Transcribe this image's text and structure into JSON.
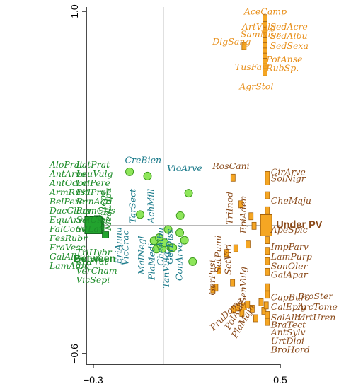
{
  "colors": {
    "between": "#1e8c2a",
    "between_marker": "#22a32e",
    "between_marker_stroke": "#0a5e14",
    "verge": "#1a7a8a",
    "verge_marker": "#8ee65a",
    "verge_marker_stroke": "#3c9a1c",
    "underpv": "#8a4a1a",
    "underpv_marker": "#f5a623",
    "underpv_marker_stroke": "#a06010",
    "upper_orange": "#e8901c",
    "axis": "#000000",
    "crosshair": "#b8b8b8"
  },
  "chart_data": {
    "type": "scatter",
    "title": "",
    "xlabel": "",
    "ylabel": "",
    "xlim": [
      -0.33,
      0.5
    ],
    "ylim": [
      -0.65,
      1.02
    ],
    "ticks": {
      "x": [
        {
          "v": -0.3,
          "label": "−0.3"
        },
        {
          "v": 0.5,
          "label": "0.5"
        }
      ],
      "y": [
        {
          "v": 1.0,
          "label": "1.0"
        },
        {
          "v": -0.6,
          "label": "−0.6"
        }
      ]
    },
    "crosshair": {
      "x": 0,
      "y": 0
    },
    "groups": [
      {
        "name": "Between",
        "x": -0.3,
        "y": 0.0
      },
      {
        "name": "Under PV",
        "x": 0.44,
        "y": 0.0
      }
    ],
    "points": [
      {
        "x": -0.285,
        "y": 0.015,
        "g": "between"
      },
      {
        "x": -0.282,
        "y": 0.03,
        "g": "between"
      },
      {
        "x": -0.278,
        "y": -0.005,
        "g": "between"
      },
      {
        "x": -0.275,
        "y": 0.02,
        "g": "between"
      },
      {
        "x": -0.27,
        "y": 0.005,
        "g": "between"
      },
      {
        "x": -0.268,
        "y": -0.01,
        "g": "between"
      },
      {
        "x": -0.248,
        "y": -0.045,
        "g": "between"
      },
      {
        "x": -0.145,
        "y": 0.25,
        "g": "verge"
      },
      {
        "x": -0.1,
        "y": 0.05,
        "g": "verge"
      },
      {
        "x": -0.068,
        "y": 0.23,
        "g": "verge"
      },
      {
        "x": -0.04,
        "y": -0.072,
        "g": "verge"
      },
      {
        "x": -0.03,
        "y": -0.112,
        "g": "verge"
      },
      {
        "x": -0.018,
        "y": -0.058,
        "g": "verge"
      },
      {
        "x": -0.012,
        "y": -0.09,
        "g": "verge"
      },
      {
        "x": -0.005,
        "y": -0.11,
        "g": "verge"
      },
      {
        "x": 0.005,
        "y": -0.082,
        "g": "verge"
      },
      {
        "x": 0.02,
        "y": -0.02,
        "g": "verge"
      },
      {
        "x": 0.032,
        "y": -0.105,
        "g": "verge"
      },
      {
        "x": 0.04,
        "y": -0.105,
        "g": "verge"
      },
      {
        "x": 0.07,
        "y": -0.035,
        "g": "verge"
      },
      {
        "x": 0.072,
        "y": 0.045,
        "g": "verge"
      },
      {
        "x": 0.09,
        "y": -0.07,
        "g": "verge"
      },
      {
        "x": 0.108,
        "y": 0.15,
        "g": "verge"
      },
      {
        "x": 0.125,
        "y": -0.17,
        "g": "verge"
      },
      {
        "x": 0.435,
        "y": 0.968,
        "g": "upper"
      },
      {
        "x": 0.435,
        "y": 0.935,
        "g": "upper"
      },
      {
        "x": 0.435,
        "y": 0.91,
        "g": "upper"
      },
      {
        "x": 0.435,
        "y": 0.884,
        "g": "upper"
      },
      {
        "x": 0.435,
        "y": 0.86,
        "g": "upper"
      },
      {
        "x": 0.435,
        "y": 0.836,
        "g": "upper"
      },
      {
        "x": 0.435,
        "y": 0.812,
        "g": "upper"
      },
      {
        "x": 0.435,
        "y": 0.788,
        "g": "upper"
      },
      {
        "x": 0.435,
        "y": 0.764,
        "g": "upper"
      },
      {
        "x": 0.435,
        "y": 0.738,
        "g": "upper"
      },
      {
        "x": 0.435,
        "y": 0.715,
        "g": "upper"
      },
      {
        "x": 0.345,
        "y": 0.838,
        "g": "upper"
      },
      {
        "x": 0.298,
        "y": 0.222,
        "g": "underpv"
      },
      {
        "x": 0.332,
        "y": 0.098,
        "g": "underpv"
      },
      {
        "x": 0.375,
        "y": 0.042,
        "g": "underpv"
      },
      {
        "x": 0.388,
        "y": -0.003,
        "g": "underpv"
      },
      {
        "x": 0.362,
        "y": -0.09,
        "g": "underpv"
      },
      {
        "x": 0.31,
        "y": -0.108,
        "g": "underpv"
      },
      {
        "x": 0.27,
        "y": -0.13,
        "g": "underpv"
      },
      {
        "x": 0.238,
        "y": -0.212,
        "g": "underpv"
      },
      {
        "x": 0.224,
        "y": -0.292,
        "g": "underpv"
      },
      {
        "x": 0.212,
        "y": -0.3,
        "g": "underpv"
      },
      {
        "x": 0.296,
        "y": -0.27,
        "g": "underpv"
      },
      {
        "x": 0.3,
        "y": -0.395,
        "g": "underpv"
      },
      {
        "x": 0.318,
        "y": -0.385,
        "g": "underpv"
      },
      {
        "x": 0.336,
        "y": -0.41,
        "g": "underpv"
      },
      {
        "x": 0.344,
        "y": -0.38,
        "g": "underpv"
      },
      {
        "x": 0.36,
        "y": -0.37,
        "g": "underpv"
      },
      {
        "x": 0.38,
        "y": -0.39,
        "g": "underpv"
      },
      {
        "x": 0.395,
        "y": -0.435,
        "g": "underpv"
      },
      {
        "x": 0.418,
        "y": -0.36,
        "g": "underpv"
      },
      {
        "x": 0.43,
        "y": -0.4,
        "g": "underpv"
      },
      {
        "x": 0.44,
        "y": -0.375,
        "g": "underpv"
      },
      {
        "x": 0.445,
        "y": 0.235,
        "g": "underpv"
      },
      {
        "x": 0.445,
        "y": 0.205,
        "g": "underpv"
      },
      {
        "x": 0.445,
        "y": 0.14,
        "g": "underpv"
      },
      {
        "x": 0.445,
        "y": 0.07,
        "g": "underpv"
      },
      {
        "x": 0.445,
        "y": -0.07,
        "g": "underpv"
      },
      {
        "x": 0.445,
        "y": -0.12,
        "g": "underpv"
      },
      {
        "x": 0.445,
        "y": -0.168,
        "g": "underpv"
      },
      {
        "x": 0.445,
        "y": -0.218,
        "g": "underpv"
      },
      {
        "x": 0.445,
        "y": -0.29,
        "g": "underpv"
      },
      {
        "x": 0.445,
        "y": -0.325,
        "g": "underpv"
      },
      {
        "x": 0.445,
        "y": -0.42,
        "g": "underpv"
      },
      {
        "x": 0.445,
        "y": -0.452,
        "g": "underpv"
      }
    ],
    "labels": [
      {
        "t": "AceCamp",
        "x": 0.345,
        "y": 0.985,
        "g": "upper",
        "r": 0
      },
      {
        "t": "ArtVulg",
        "x": 0.336,
        "y": 0.915,
        "g": "upper",
        "r": 0
      },
      {
        "t": "SedAcre",
        "x": 0.456,
        "y": 0.915,
        "g": "upper",
        "r": 0
      },
      {
        "t": "SamNigr",
        "x": 0.33,
        "y": 0.88,
        "g": "upper",
        "r": 0
      },
      {
        "t": "SedAlbu",
        "x": 0.456,
        "y": 0.872,
        "g": "upper",
        "r": 0
      },
      {
        "t": "SedSexa",
        "x": 0.456,
        "y": 0.825,
        "g": "upper",
        "r": 0
      },
      {
        "t": "DigSang",
        "x": 0.21,
        "y": 0.845,
        "g": "upper",
        "r": 0
      },
      {
        "t": "PotAnse",
        "x": 0.44,
        "y": 0.762,
        "g": "upper",
        "r": 0
      },
      {
        "t": "TusFarf",
        "x": 0.306,
        "y": 0.726,
        "g": "upper",
        "r": 0
      },
      {
        "t": "RubSp.",
        "x": 0.44,
        "y": 0.72,
        "g": "upper",
        "r": 0
      },
      {
        "t": "AgrStol",
        "x": 0.325,
        "y": 0.634,
        "g": "upper",
        "r": 0
      },
      {
        "t": "RosCani",
        "x": 0.21,
        "y": 0.262,
        "g": "underpv",
        "r": 0
      },
      {
        "t": "CirArve",
        "x": 0.46,
        "y": 0.235,
        "g": "underpv",
        "r": 0
      },
      {
        "t": "SolNigr",
        "x": 0.46,
        "y": 0.205,
        "g": "underpv",
        "r": 0
      },
      {
        "t": "CheMaju",
        "x": 0.46,
        "y": 0.1,
        "g": "underpv",
        "r": 0
      },
      {
        "t": "TriInod",
        "x": 0.295,
        "y": 0.08,
        "g": "underpv",
        "r": -90
      },
      {
        "t": "EpiAden",
        "x": 0.355,
        "y": 0.05,
        "g": "underpv",
        "r": -90
      },
      {
        "t": "ApeSpic",
        "x": 0.46,
        "y": -0.035,
        "g": "underpv",
        "r": 0
      },
      {
        "t": "ImpParv",
        "x": 0.46,
        "y": -0.115,
        "g": "underpv",
        "r": 0
      },
      {
        "t": "LamPurp",
        "x": 0.46,
        "y": -0.16,
        "g": "underpv",
        "r": 0
      },
      {
        "t": "SonOler",
        "x": 0.46,
        "y": -0.205,
        "g": "underpv",
        "r": 0
      },
      {
        "t": "GalApar",
        "x": 0.46,
        "y": -0.245,
        "g": "underpv",
        "r": 0
      },
      {
        "t": "SetPumi",
        "x": 0.247,
        "y": -0.135,
        "g": "underpv",
        "r": -90
      },
      {
        "t": "SetViri",
        "x": 0.29,
        "y": -0.16,
        "g": "underpv",
        "r": -90
      },
      {
        "t": "GerPusi",
        "x": 0.222,
        "y": -0.245,
        "g": "underpv",
        "r": -90
      },
      {
        "t": "SenVulg",
        "x": 0.355,
        "y": -0.28,
        "g": "underpv",
        "r": -90
      },
      {
        "t": "CapBurs",
        "x": 0.46,
        "y": -0.35,
        "g": "underpv",
        "r": 0
      },
      {
        "t": "BroSter",
        "x": 0.575,
        "y": -0.345,
        "g": "underpv",
        "r": 0
      },
      {
        "t": "CalEpig",
        "x": 0.46,
        "y": -0.395,
        "g": "underpv",
        "r": 0
      },
      {
        "t": "ArcTome",
        "x": 0.575,
        "y": -0.395,
        "g": "underpv",
        "r": 0
      },
      {
        "t": "SalAlba",
        "x": 0.46,
        "y": -0.445,
        "g": "underpv",
        "r": 0
      },
      {
        "t": "UrtUren",
        "x": 0.575,
        "y": -0.445,
        "g": "underpv",
        "r": 0
      },
      {
        "t": "BraTect",
        "x": 0.46,
        "y": -0.48,
        "g": "underpv",
        "r": 0
      },
      {
        "t": "AntSylv",
        "x": 0.46,
        "y": -0.515,
        "g": "underpv",
        "r": 0
      },
      {
        "t": "UrtDioi",
        "x": 0.46,
        "y": -0.555,
        "g": "underpv",
        "r": 0
      },
      {
        "t": "BroHord",
        "x": 0.46,
        "y": -0.595,
        "g": "underpv",
        "r": 0
      },
      {
        "t": "PruDome",
        "x": 0.278,
        "y": -0.425,
        "g": "underpv",
        "r": -45
      },
      {
        "t": "PolAvic",
        "x": 0.318,
        "y": -0.425,
        "g": "underpv",
        "r": -60
      },
      {
        "t": "PlaMaju",
        "x": 0.352,
        "y": -0.455,
        "g": "underpv",
        "r": -60
      },
      {
        "t": "CreBien",
        "x": -0.165,
        "y": 0.29,
        "g": "verge",
        "r": 0
      },
      {
        "t": "VioArve",
        "x": 0.015,
        "y": 0.253,
        "g": "verge",
        "r": 0
      },
      {
        "t": "TarSect",
        "x": -0.12,
        "y": 0.09,
        "g": "verge",
        "r": -90
      },
      {
        "t": "AchMill",
        "x": -0.04,
        "y": 0.09,
        "g": "verge",
        "r": -90
      },
      {
        "t": "EriAnnu",
        "x": -0.18,
        "y": -0.095,
        "g": "verge",
        "r": -90
      },
      {
        "t": "VicCrac",
        "x": -0.15,
        "y": -0.105,
        "g": "verge",
        "r": -90
      },
      {
        "t": "MalNegl",
        "x": -0.082,
        "y": -0.14,
        "g": "verge",
        "r": -90
      },
      {
        "t": "PlaMedi",
        "x": -0.038,
        "y": -0.17,
        "g": "verge",
        "r": -90
      },
      {
        "t": "CheAlbu",
        "x": 0.0,
        "y": -0.1,
        "g": "verge",
        "r": -90
      },
      {
        "t": "GerDiss",
        "x": 0.04,
        "y": -0.1,
        "g": "verge",
        "r": -90
      },
      {
        "t": "TanVulg",
        "x": 0.025,
        "y": -0.21,
        "g": "verge",
        "r": -90
      },
      {
        "t": "ConArve",
        "x": 0.08,
        "y": -0.17,
        "g": "verge",
        "r": -90
      },
      {
        "t": "AloPrat",
        "x": -0.488,
        "y": 0.27,
        "g": "between",
        "r": 0
      },
      {
        "t": "LatPrat",
        "x": -0.374,
        "y": 0.27,
        "g": "between",
        "r": 0
      },
      {
        "t": "AntArve",
        "x": -0.488,
        "y": 0.226,
        "g": "between",
        "r": 0
      },
      {
        "t": "LeuVulg",
        "x": -0.374,
        "y": 0.226,
        "g": "between",
        "r": 0
      },
      {
        "t": "AntOdor",
        "x": -0.488,
        "y": 0.183,
        "g": "between",
        "r": 0
      },
      {
        "t": "LolPere",
        "x": -0.374,
        "y": 0.183,
        "g": "between",
        "r": 0
      },
      {
        "t": "ArmRust",
        "x": -0.488,
        "y": 0.14,
        "g": "between",
        "r": 0
      },
      {
        "t": "PhlPrat",
        "x": -0.374,
        "y": 0.14,
        "g": "between",
        "r": 0
      },
      {
        "t": "BelPere",
        "x": -0.488,
        "y": 0.097,
        "g": "between",
        "r": 0
      },
      {
        "t": "RanAcri",
        "x": -0.374,
        "y": 0.097,
        "g": "between",
        "r": 0
      },
      {
        "t": "DacGlom",
        "x": -0.488,
        "y": 0.054,
        "g": "between",
        "r": 0
      },
      {
        "t": "RumCris",
        "x": -0.374,
        "y": 0.054,
        "g": "between",
        "r": 0
      },
      {
        "t": "EquArve",
        "x": -0.488,
        "y": 0.011,
        "g": "between",
        "r": 0
      },
      {
        "t": "SalCine",
        "x": -0.374,
        "y": 0.011,
        "g": "between",
        "r": 0
      },
      {
        "t": "FalConv",
        "x": -0.488,
        "y": -0.032,
        "g": "between",
        "r": 0
      },
      {
        "t": "SilLati",
        "x": -0.374,
        "y": -0.032,
        "g": "between",
        "r": 0
      },
      {
        "t": "FesRubr",
        "x": -0.488,
        "y": -0.075,
        "g": "between",
        "r": 0
      },
      {
        "t": "FraVesc",
        "x": -0.488,
        "y": -0.118,
        "g": "between",
        "r": 0
      },
      {
        "t": "GalAlbu",
        "x": -0.488,
        "y": -0.161,
        "g": "between",
        "r": 0
      },
      {
        "t": "LamAlbu",
        "x": -0.488,
        "y": -0.204,
        "g": "between",
        "r": 0
      },
      {
        "t": "TriHybr",
        "x": -0.374,
        "y": -0.14,
        "g": "between",
        "r": 0
      },
      {
        "t": "TriPrat",
        "x": -0.374,
        "y": -0.183,
        "g": "between",
        "r": 0
      },
      {
        "t": "VerCham",
        "x": -0.374,
        "y": -0.226,
        "g": "between",
        "r": 0
      },
      {
        "t": "VicSepi",
        "x": -0.374,
        "y": -0.269,
        "g": "between",
        "r": 0
      },
      {
        "t": "ViRepe",
        "x": -0.246,
        "y": 0.09,
        "g": "between",
        "r": -90
      },
      {
        "t": "MedLupu",
        "x": -0.224,
        "y": 0.075,
        "g": "between",
        "r": -90
      }
    ]
  }
}
